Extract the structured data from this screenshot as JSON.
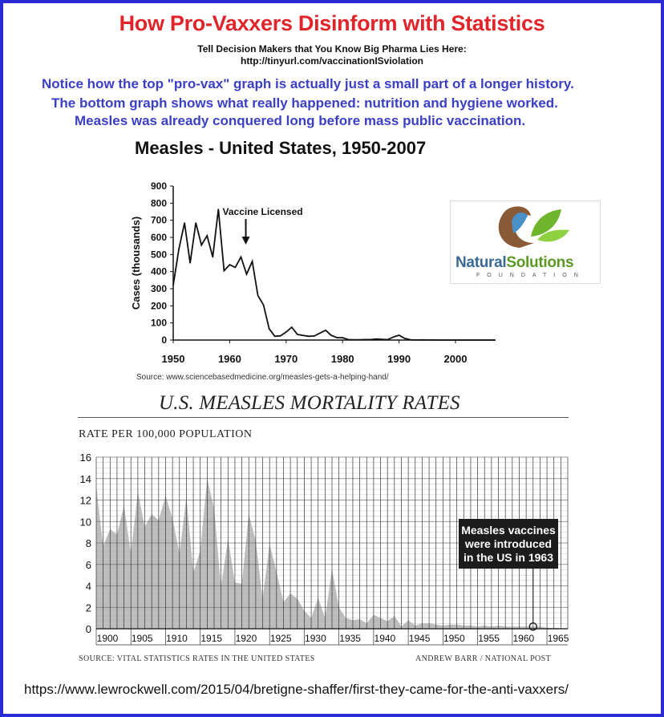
{
  "header": {
    "title": "How Pro-Vaxxers Disinform with Statistics",
    "subtitle_line1": "Tell Decision Makers that You Know Big Pharma Lies Here:",
    "subtitle_line2": "http://tinyurl.com/vaccinationISviolation",
    "note_line1": "Notice how the top \"pro-vax\" graph is actually just a small part of a longer history.",
    "note_line2": "The bottom graph shows what really happened: nutrition and hygiene worked.",
    "note_line3": "Measles was already conquered long before mass public vaccination."
  },
  "logo": {
    "name_part1": "Natural",
    "name_part2": "Solutions",
    "tagline": "FOUNDATION"
  },
  "footer_url": "https://www.lewrockwell.com/2015/04/bretigne-shaffer/first-they-came-for-the-anti-vaxxers/",
  "chart_data": [
    {
      "type": "line",
      "title": "Measles - United States, 1950-2007",
      "xlabel": "",
      "ylabel": "Cases (thousands)",
      "xlim": [
        1950,
        2007
      ],
      "ylim": [
        0,
        900
      ],
      "x_ticks": [
        "1950",
        "1960",
        "1970",
        "1980",
        "1990",
        "2000"
      ],
      "y_ticks": [
        "0",
        "100",
        "200",
        "300",
        "400",
        "500",
        "600",
        "700",
        "800",
        "900"
      ],
      "annotation": "Vaccine Licensed",
      "annotation_year": 1963,
      "source": "Source: www.sciencebasedmedicine.org/measles-gets-a-helping-hand/",
      "series": [
        {
          "x": [
            1950,
            1951,
            1952,
            1953,
            1954,
            1955,
            1956,
            1957,
            1958,
            1959,
            1960,
            1961,
            1962,
            1963,
            1964,
            1965,
            1966,
            1967,
            1968,
            1969,
            1970,
            1971,
            1972,
            1973,
            1974,
            1975,
            1976,
            1977,
            1978,
            1979,
            1980,
            1981,
            1982,
            1983,
            1984,
            1985,
            1986,
            1987,
            1988,
            1989,
            1990,
            1991,
            1992,
            1993,
            1994,
            1995,
            1996,
            1997,
            1998,
            1999,
            2000,
            2001,
            2002,
            2003,
            2004,
            2005,
            2006,
            2007
          ],
          "y": [
            320,
            530,
            685,
            450,
            685,
            555,
            610,
            485,
            765,
            405,
            440,
            425,
            485,
            385,
            460,
            260,
            205,
            65,
            22,
            25,
            47,
            75,
            33,
            27,
            22,
            24,
            41,
            57,
            27,
            14,
            14,
            3,
            2,
            2,
            3,
            3,
            6,
            4,
            3,
            18,
            28,
            10,
            2,
            0.3,
            1,
            0.3,
            0.5,
            0.1,
            0.1,
            0.1,
            0.1,
            0.1,
            0,
            0.1,
            0,
            0.1,
            0.1,
            0
          ]
        }
      ],
      "color": "#111111"
    },
    {
      "type": "area",
      "title": "U.S. MEASLES MORTALITY RATES",
      "ylabel": "RATE PER 100,000 POPULATION",
      "xlabel": "",
      "xlim": [
        1900,
        1968
      ],
      "ylim": [
        0,
        16
      ],
      "x_ticks": [
        "1900",
        "1905",
        "1910",
        "1915",
        "1920",
        "1925",
        "1930",
        "1935",
        "1940",
        "1945",
        "1950",
        "1955",
        "1960",
        "1965"
      ],
      "y_ticks": [
        "0",
        "2",
        "4",
        "6",
        "8",
        "10",
        "12",
        "14",
        "16"
      ],
      "annotation": [
        "Measles vaccines",
        "were introduced",
        "in the US in 1963"
      ],
      "annotation_year": 1963,
      "source": "SOURCE: VITAL STATISTICS RATES IN THE UNITED STATES",
      "credit": "ANDREW BARR / NATIONAL POST",
      "series": [
        {
          "x": [
            1900,
            1901,
            1902,
            1903,
            1904,
            1905,
            1906,
            1907,
            1908,
            1909,
            1910,
            1911,
            1912,
            1913,
            1914,
            1915,
            1916,
            1917,
            1918,
            1919,
            1920,
            1921,
            1922,
            1923,
            1924,
            1925,
            1926,
            1927,
            1928,
            1929,
            1930,
            1931,
            1932,
            1933,
            1934,
            1935,
            1936,
            1937,
            1938,
            1939,
            1940,
            1941,
            1942,
            1943,
            1944,
            1945,
            1946,
            1947,
            1948,
            1949,
            1950,
            1951,
            1952,
            1953,
            1954,
            1955,
            1956,
            1957,
            1958,
            1959,
            1960,
            1961,
            1962,
            1963,
            1964,
            1965,
            1966,
            1967,
            1968
          ],
          "y": [
            13.3,
            7.7,
            9.3,
            8.8,
            11.5,
            7.0,
            12.8,
            9.5,
            10.7,
            10.1,
            12.4,
            10.3,
            7.0,
            12.3,
            5.2,
            7.3,
            14.0,
            11.2,
            3.9,
            8.4,
            4.3,
            4.2,
            10.7,
            8.2,
            2.8,
            7.9,
            5.3,
            2.5,
            3.3,
            2.8,
            1.7,
            1.0,
            2.9,
            1.0,
            5.6,
            2.0,
            1.0,
            0.8,
            0.9,
            0.5,
            1.3,
            1.0,
            0.7,
            1.2,
            0.2,
            0.8,
            0.3,
            0.5,
            0.5,
            0.4,
            0.3,
            0.4,
            0.4,
            0.3,
            0.3,
            0.2,
            0.3,
            0.2,
            0.3,
            0.2,
            0.2,
            0.2,
            0.2,
            0.2,
            0.2,
            0.1,
            0.1,
            0.05,
            0.05
          ]
        }
      ],
      "fill_color": "#bcbcbc",
      "grid": true
    }
  ]
}
